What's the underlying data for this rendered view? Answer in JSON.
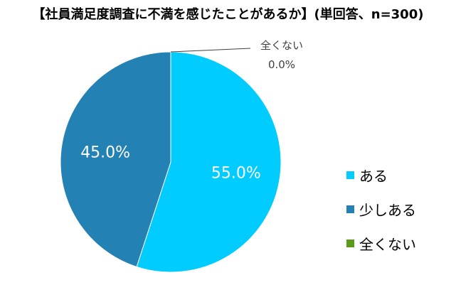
{
  "chart_data": {
    "type": "pie",
    "title": "【社員満足度調査に不満を感じたことがあるか】(単回答、n=300)",
    "categories": [
      "ある",
      "少しある",
      "全くない"
    ],
    "values": [
      55.0,
      45.0,
      0.0
    ],
    "data_labels": [
      "55.0%",
      "45.0%",
      "0.0%"
    ],
    "colors": [
      "#00ccff",
      "#2481b4",
      "#5b9a18"
    ],
    "legend_position": "right",
    "start_angle_deg": 0,
    "direction": "clockwise"
  }
}
